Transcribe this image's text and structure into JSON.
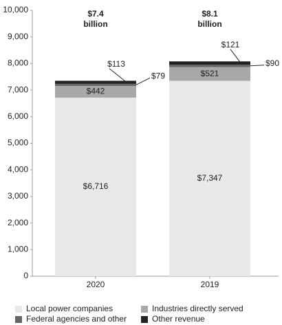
{
  "chart_data": {
    "type": "stacked_bar",
    "categories": [
      "2020",
      "2019"
    ],
    "annotations": [
      {
        "lines": [
          "$7.4",
          "billion"
        ]
      },
      {
        "lines": [
          "$8.1",
          "billion"
        ]
      }
    ],
    "series": [
      {
        "name": "Local power companies",
        "color": "#e8e8e8",
        "values": [
          6716,
          7347
        ],
        "value_labels": [
          "$6,716",
          "$7,347"
        ]
      },
      {
        "name": "Industries directly served",
        "color": "#a8a8a8",
        "values": [
          442,
          521
        ],
        "value_labels": [
          "$442",
          "$521"
        ]
      },
      {
        "name": "Federal agencies and other",
        "color": "#666666",
        "values": [
          79,
          90
        ],
        "value_labels": [
          "$79",
          "$90"
        ]
      },
      {
        "name": "Other revenue",
        "color": "#222222",
        "values": [
          113,
          121
        ],
        "value_labels": [
          "$113",
          "$121"
        ]
      }
    ],
    "ylim": [
      0,
      10000
    ],
    "yticks": [
      0,
      {
        "value": 1000,
        "label": "1,000"
      },
      {
        "value": 2000,
        "label": "2,000"
      },
      {
        "value": 3000,
        "label": "3,000"
      },
      {
        "value": 4000,
        "label": "4,000"
      },
      {
        "value": 5000,
        "label": "5,000"
      },
      {
        "value": 6000,
        "label": "6,000"
      },
      {
        "value": 7000,
        "label": "7,000"
      },
      {
        "value": 8000,
        "label": "8,000"
      },
      {
        "value": 9000,
        "label": "9,000"
      },
      {
        "value": 10000,
        "label": "10,000"
      }
    ]
  }
}
